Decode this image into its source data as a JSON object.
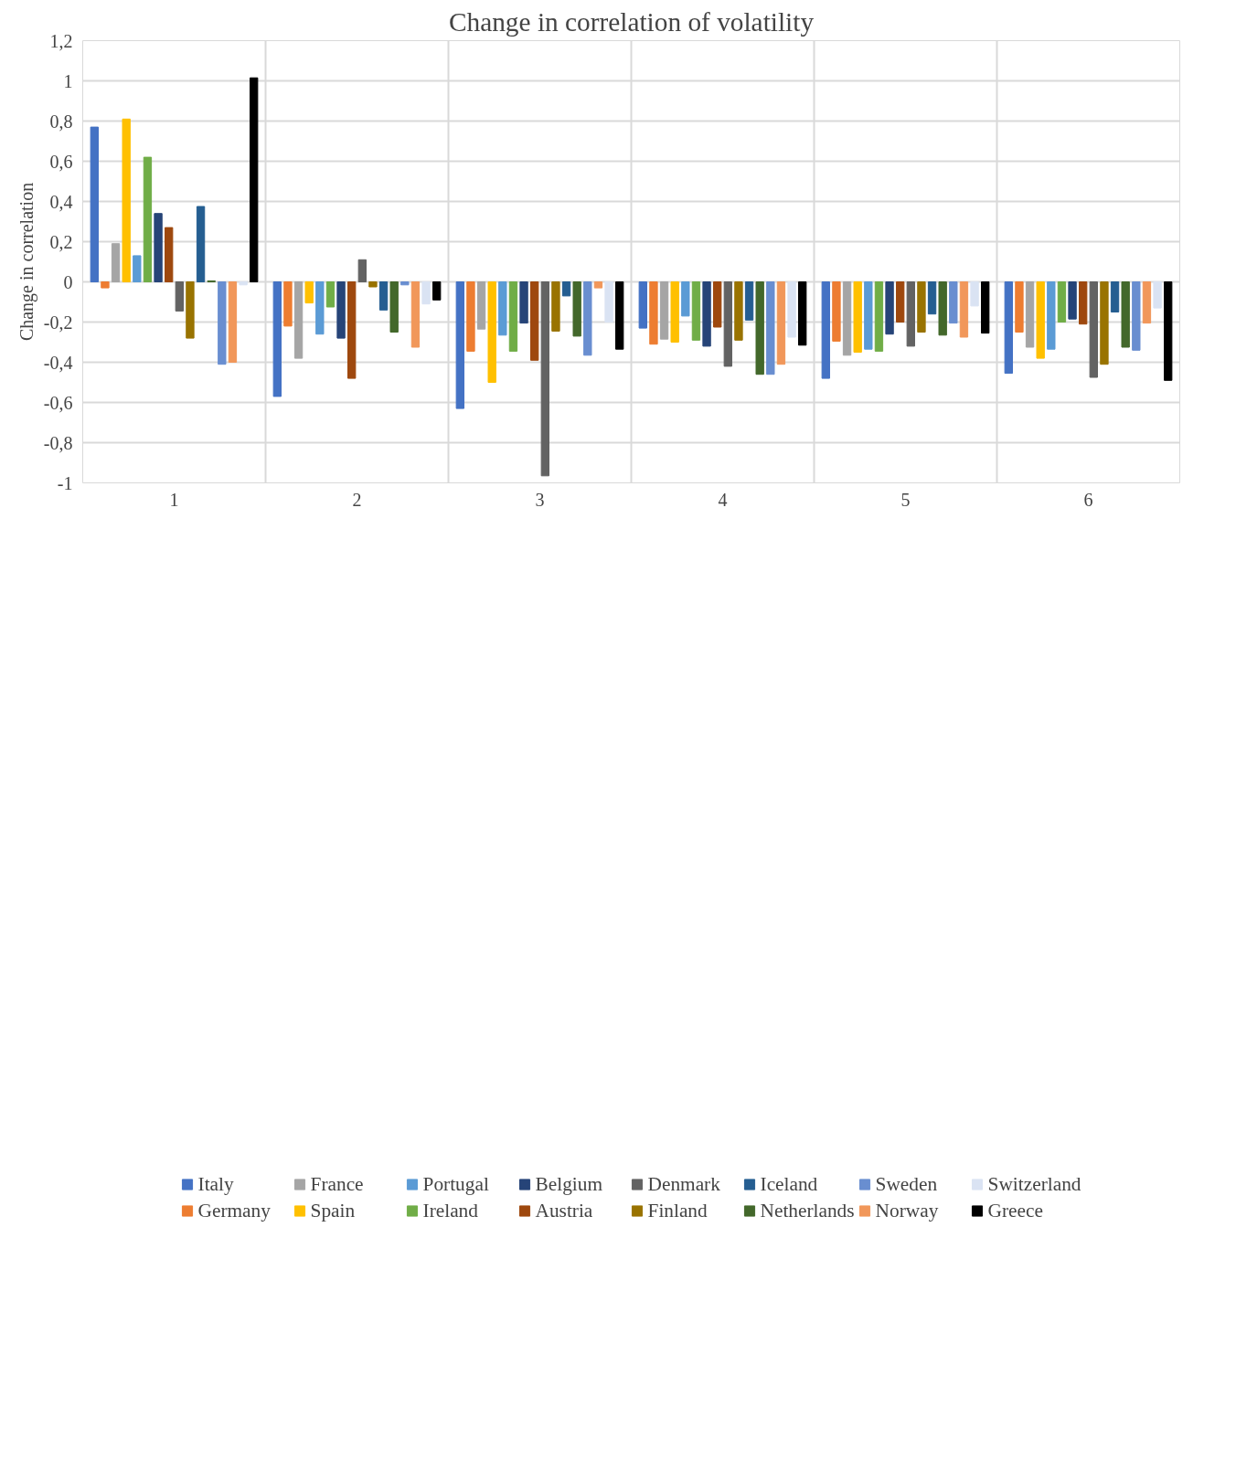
{
  "chart_data": {
    "type": "bar",
    "title": "Change in correlation of volatility",
    "ylabel": "Change in correlation",
    "categories": [
      "1",
      "2",
      "3",
      "4",
      "5",
      "6"
    ],
    "ylim": [
      -1,
      1.2
    ],
    "yticks": [
      {
        "value": -1,
        "label": "-1"
      },
      {
        "value": -0.8,
        "label": "-0,8"
      },
      {
        "value": -0.6,
        "label": "-0,6"
      },
      {
        "value": -0.4,
        "label": "-0,4"
      },
      {
        "value": -0.2,
        "label": "-0,2"
      },
      {
        "value": 0,
        "label": "0"
      },
      {
        "value": 0.2,
        "label": "0,2"
      },
      {
        "value": 0.4,
        "label": "0,4"
      },
      {
        "value": 0.6,
        "label": "0,6"
      },
      {
        "value": 0.8,
        "label": "0,8"
      },
      {
        "value": 1,
        "label": "1"
      },
      {
        "value": 1.2,
        "label": "1,2"
      }
    ],
    "grid": true,
    "legend": "bottom",
    "series": [
      {
        "name": "Italy",
        "color": "#4472c4",
        "values": [
          0.77,
          -0.57,
          -0.63,
          -0.23,
          -0.48,
          -0.455
        ]
      },
      {
        "name": "Germany",
        "color": "#ed7d31",
        "values": [
          -0.03,
          -0.22,
          -0.345,
          -0.31,
          -0.295,
          -0.25
        ]
      },
      {
        "name": "France",
        "color": "#a5a5a5",
        "values": [
          0.19,
          -0.38,
          -0.235,
          -0.285,
          -0.365,
          -0.325
        ]
      },
      {
        "name": "Spain",
        "color": "#ffc000",
        "values": [
          0.81,
          -0.105,
          -0.5,
          -0.3,
          -0.35,
          -0.38
        ]
      },
      {
        "name": "Portugal",
        "color": "#5b9bd5",
        "values": [
          0.13,
          -0.26,
          -0.265,
          -0.17,
          -0.335,
          -0.335
        ]
      },
      {
        "name": "Ireland",
        "color": "#70ad47",
        "values": [
          0.62,
          -0.125,
          -0.345,
          -0.29,
          -0.345,
          -0.2
        ]
      },
      {
        "name": "Belgium",
        "color": "#264478",
        "values": [
          0.34,
          -0.28,
          -0.205,
          -0.32,
          -0.26,
          -0.185
        ]
      },
      {
        "name": "Austria",
        "color": "#9e480e",
        "values": [
          0.27,
          -0.48,
          -0.39,
          -0.225,
          -0.2,
          -0.21
        ]
      },
      {
        "name": "Denmark",
        "color": "#636363",
        "values": [
          -0.145,
          0.11,
          -0.965,
          -0.42,
          -0.32,
          -0.475
        ]
      },
      {
        "name": "Finland",
        "color": "#997300",
        "values": [
          -0.28,
          -0.025,
          -0.245,
          -0.29,
          -0.25,
          -0.41
        ]
      },
      {
        "name": "Iceland",
        "color": "#255e91",
        "values": [
          0.375,
          -0.14,
          -0.07,
          -0.19,
          -0.16,
          -0.15
        ]
      },
      {
        "name": "Netherlands",
        "color": "#43682b",
        "values": [
          0.005,
          -0.25,
          -0.27,
          -0.46,
          -0.265,
          -0.325
        ]
      },
      {
        "name": "Sweden",
        "color": "#698ed0",
        "values": [
          -0.41,
          -0.015,
          -0.365,
          -0.46,
          -0.205,
          -0.34
        ]
      },
      {
        "name": "Norway",
        "color": "#f1975a",
        "values": [
          -0.4,
          -0.325,
          -0.03,
          -0.41,
          -0.275,
          -0.205
        ]
      },
      {
        "name": "Switzerland",
        "color": "#dae3f3",
        "values": [
          -0.015,
          -0.11,
          -0.2,
          -0.275,
          -0.12,
          -0.13
        ]
      },
      {
        "name": "Greece",
        "color": "#000000",
        "values": [
          1.015,
          -0.09,
          -0.335,
          -0.315,
          -0.255,
          -0.49
        ]
      }
    ]
  }
}
